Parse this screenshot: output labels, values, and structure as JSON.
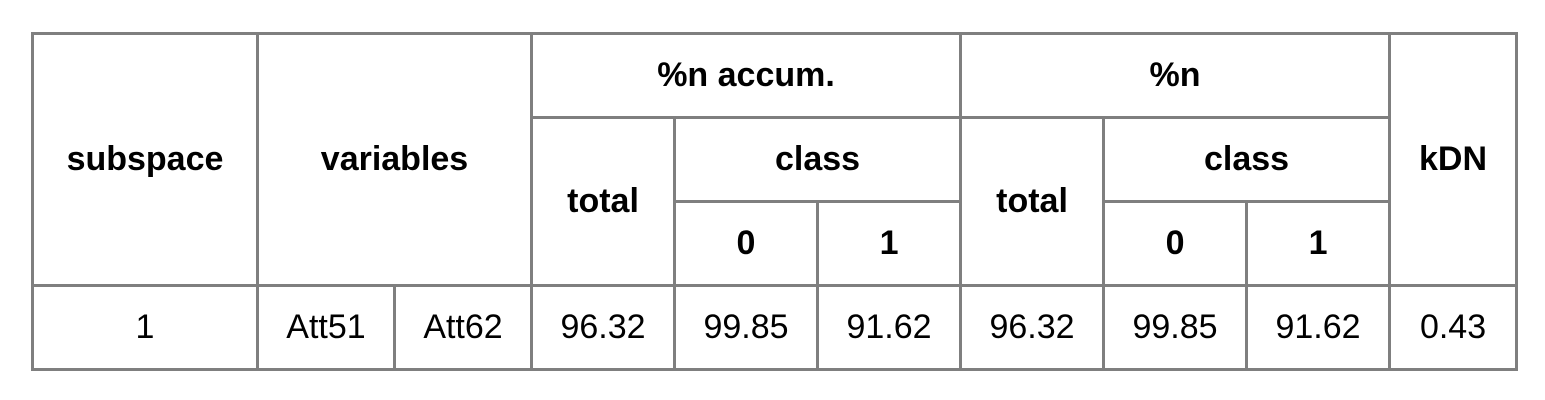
{
  "headers": {
    "subspace": "subspace",
    "variables": "variables",
    "pct_accum": "%n accum.",
    "pct_n": "%n",
    "kdn": "kDN",
    "total_accum": "total",
    "class_accum": "class",
    "class0_accum": "0",
    "class1_accum": "1",
    "total_n": "total",
    "class_n": "class",
    "class0_n": "0",
    "class1_n": "1"
  },
  "rows": [
    {
      "subspace": "1",
      "var1": "Att51",
      "var2": "Att62",
      "accum_total": "96.32",
      "accum_class0": "99.85",
      "accum_class1": "91.62",
      "n_total": "96.32",
      "n_class0": "99.85",
      "n_class1": "91.62",
      "kdn": "0.43"
    }
  ]
}
